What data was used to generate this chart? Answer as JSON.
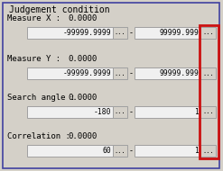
{
  "title": "Judgement condition",
  "bg_color": "#d4d0c8",
  "border_color": "#4040a0",
  "rows": [
    {
      "label": "Measure X :",
      "value": "0.0000",
      "input1": "-99999.9999",
      "input2": "99999.999",
      "show_dash": true
    },
    {
      "label": "Measure Y :",
      "value": "0.0000",
      "input1": "-99999.9999",
      "input2": "99999.999",
      "show_dash": true
    },
    {
      "label": "Search angle :",
      "value": "0.0000",
      "input1": "-180",
      "input2": "1",
      "show_dash": true
    },
    {
      "label": "Correlation :",
      "value": "0.0000",
      "input1": "60",
      "input2": "1",
      "show_dash": true
    }
  ],
  "input_bg": "#f0f0f0",
  "input_border": "#a0a0a0",
  "btn_bg": "#d4d0c8",
  "btn_border": "#a0a0a0",
  "red_border_color": "#cc1111",
  "label_fontsize": 6.5,
  "value_fontsize": 6.5,
  "input_fontsize": 5.8,
  "btn_fontsize": 5.0,
  "title_fontsize": 7.0
}
